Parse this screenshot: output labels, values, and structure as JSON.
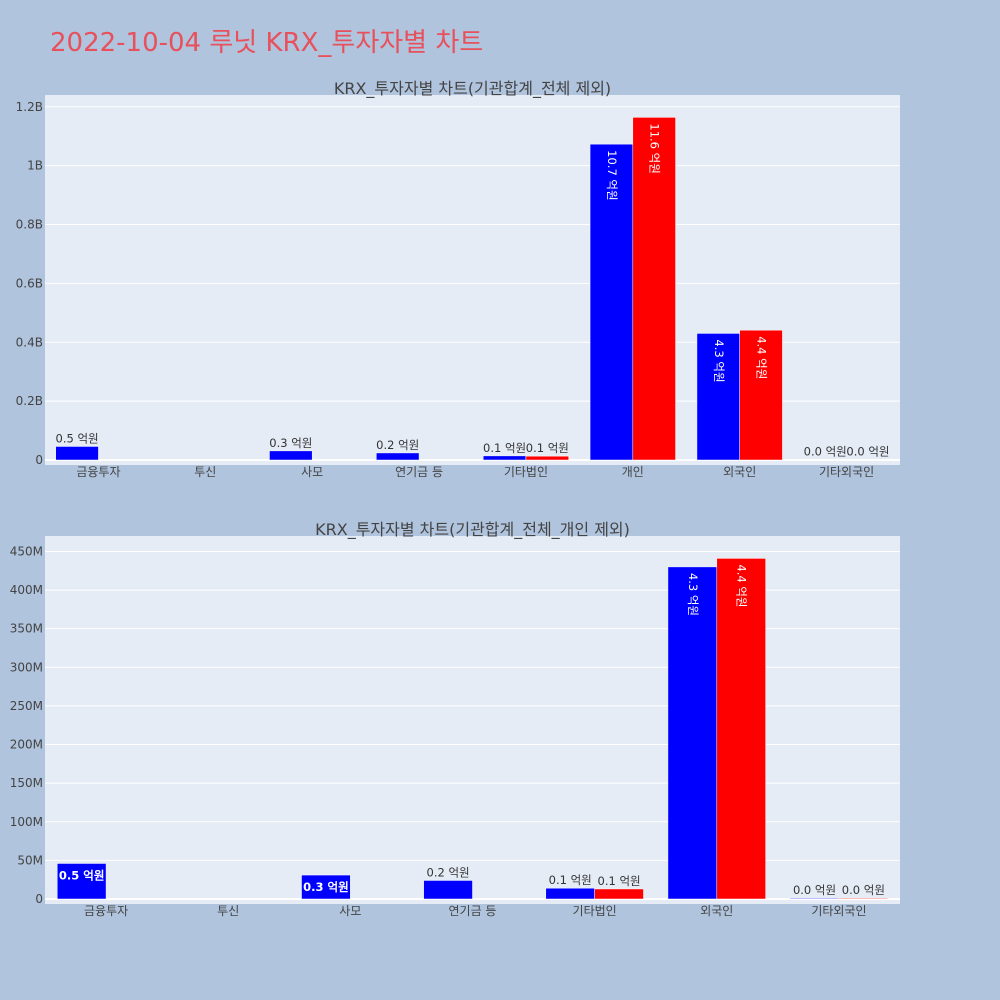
{
  "page": {
    "title": "2022-10-04 루닛 KRX_투자자별 차트"
  },
  "colors": {
    "series_a": "#0000ff",
    "series_b": "#ff0000",
    "background": "#b0c4de",
    "plot_bg": "#e5ecf6",
    "title": "#e8505b"
  },
  "chart_data": [
    {
      "type": "bar",
      "title": "KRX_투자자별 차트(기관합계_전체 제외)",
      "categories": [
        "금융투자",
        "투신",
        "사모",
        "연기금 등",
        "기타법인",
        "개인",
        "외국인",
        "기타외국인"
      ],
      "series": [
        {
          "values": [
            46000000,
            0,
            31000000,
            24000000,
            14000000,
            1073000000,
            430000000,
            1000000
          ],
          "labels": [
            "0.5 억원",
            "",
            "0.3 억원",
            "0.2 억원",
            "0.1 억원",
            "10.7 억원",
            "4.3 억원",
            "0.0 억원"
          ]
        },
        {
          "values": [
            0,
            0,
            0,
            0,
            13000000,
            1164000000,
            441000000,
            1000000
          ],
          "labels": [
            "",
            "",
            "",
            "",
            "0.1 억원",
            "11.6 억원",
            "4.4 억원",
            "0.0 억원"
          ]
        }
      ],
      "yticks": [
        "0",
        "0.2B",
        "0.4B",
        "0.6B",
        "0.8B",
        "1B",
        "1.2B"
      ],
      "ylim": [
        0,
        1240000000
      ],
      "ytick_step": 200000000,
      "grid": true
    },
    {
      "type": "bar",
      "title": "KRX_투자자별 차트(기관합계_전체_개인 제외)",
      "categories": [
        "금융투자",
        "투신",
        "사모",
        "연기금 등",
        "기타법인",
        "외국인",
        "기타외국인"
      ],
      "series": [
        {
          "values": [
            46000000,
            0,
            31000000,
            24000000,
            14000000,
            430000000,
            1000000
          ],
          "labels": [
            "0.5 억원",
            "",
            "0.3 억원",
            "0.2 억원",
            "0.1 억원",
            "4.3 억원",
            "0.0 억원"
          ]
        },
        {
          "values": [
            0,
            0,
            0,
            0,
            13000000,
            441000000,
            1000000
          ],
          "labels": [
            "",
            "",
            "",
            "",
            "0.1 억원",
            "4.4 억원",
            "0.0 억원"
          ]
        }
      ],
      "yticks": [
        "0",
        "50M",
        "100M",
        "150M",
        "200M",
        "250M",
        "300M",
        "350M",
        "400M",
        "450M"
      ],
      "ylim": [
        0,
        470000000
      ],
      "ytick_step": 50000000,
      "grid": true
    }
  ]
}
